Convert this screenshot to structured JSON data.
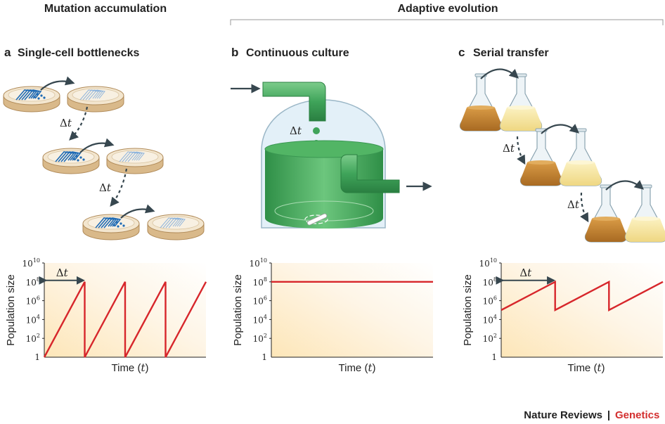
{
  "headers": {
    "mutation": "Mutation accumulation",
    "adaptive": "Adaptive evolution"
  },
  "panels": [
    {
      "letter": "a",
      "title": "Single-cell bottlenecks"
    },
    {
      "letter": "b",
      "title": "Continuous culture"
    },
    {
      "letter": "c",
      "title": "Serial transfer"
    }
  ],
  "delta_symbol": "Δ",
  "delta_var": "t",
  "axis": {
    "ylabel": "Population size",
    "xlabel_main": "Time (",
    "xlabel_var": "t",
    "xlabel_close": ")",
    "ytick_base": "10",
    "ytick_one": "1",
    "ytick_exponents": [
      "2",
      "4",
      "6",
      "8",
      "10"
    ]
  },
  "footer": {
    "journal": "Nature Reviews",
    "separator": "|",
    "section": "Genetics"
  },
  "colors": {
    "line": "#d7262b",
    "arrow": "#37474f",
    "green": "#3fa45a",
    "plate_blue": "#1f6bb5",
    "broth": "#c8862f",
    "broth_light": "#f3e39a"
  },
  "chart_data": [
    {
      "type": "line",
      "panel": "a",
      "yscale": "log10",
      "ylim": [
        0,
        10
      ],
      "xlim": [
        0,
        4
      ],
      "x": [
        0,
        1,
        1,
        2,
        2,
        3,
        3,
        4
      ],
      "y": [
        0,
        8,
        0,
        8,
        0,
        8,
        0,
        8
      ]
    },
    {
      "type": "line",
      "panel": "b",
      "yscale": "log10",
      "ylim": [
        0,
        10
      ],
      "xlim": [
        0,
        4
      ],
      "x": [
        0,
        4
      ],
      "y": [
        8,
        8
      ]
    },
    {
      "type": "line",
      "panel": "c",
      "yscale": "log10",
      "ylim": [
        0,
        10
      ],
      "xlim": [
        0,
        3
      ],
      "x": [
        0,
        1,
        1,
        2,
        2,
        3
      ],
      "y": [
        5,
        8,
        5,
        8,
        5,
        8
      ]
    }
  ]
}
